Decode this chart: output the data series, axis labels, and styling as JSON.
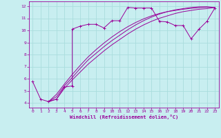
{
  "xlabel": "Windchill (Refroidissement éolien,°C)",
  "bg_color": "#c8eef0",
  "line_color": "#990099",
  "grid_color": "#aadddd",
  "xlim": [
    -0.5,
    23.5
  ],
  "ylim": [
    3.6,
    12.4
  ],
  "xticks": [
    0,
    1,
    2,
    3,
    4,
    5,
    6,
    7,
    8,
    9,
    10,
    11,
    12,
    13,
    14,
    15,
    16,
    17,
    18,
    19,
    20,
    21,
    22,
    23
  ],
  "yticks": [
    4,
    5,
    6,
    7,
    8,
    9,
    10,
    11,
    12
  ],
  "line1_x": [
    0,
    1,
    2,
    3,
    4,
    5,
    5,
    6,
    7,
    8,
    9,
    10,
    11,
    12,
    13,
    14,
    15,
    16,
    17,
    18,
    19,
    20,
    21,
    22,
    23
  ],
  "line1_y": [
    5.75,
    4.3,
    4.1,
    4.3,
    5.3,
    5.4,
    10.1,
    10.35,
    10.5,
    10.5,
    10.2,
    10.8,
    10.8,
    11.9,
    11.85,
    11.85,
    11.85,
    10.75,
    10.7,
    10.4,
    10.4,
    9.3,
    10.1,
    10.75,
    11.85
  ],
  "line2_x": [
    2,
    3,
    4,
    5,
    6,
    7,
    8,
    9,
    10,
    11,
    12,
    13,
    14,
    15,
    16,
    17,
    18,
    19,
    20,
    21,
    22,
    23
  ],
  "line2_y": [
    4.1,
    4.3,
    5.2,
    5.9,
    6.55,
    7.2,
    7.75,
    8.3,
    8.8,
    9.25,
    9.7,
    10.1,
    10.45,
    10.75,
    11.0,
    11.2,
    11.4,
    11.55,
    11.65,
    11.75,
    11.8,
    11.9
  ],
  "line3_x": [
    2,
    3,
    4,
    5,
    6,
    7,
    8,
    9,
    10,
    11,
    12,
    13,
    14,
    15,
    16,
    17,
    18,
    19,
    20,
    21,
    22,
    23
  ],
  "line3_y": [
    4.1,
    4.5,
    5.4,
    6.1,
    6.85,
    7.55,
    8.1,
    8.65,
    9.15,
    9.6,
    10.05,
    10.45,
    10.8,
    11.1,
    11.35,
    11.55,
    11.7,
    11.8,
    11.9,
    11.95,
    11.95,
    11.9
  ],
  "line4_x": [
    2,
    3,
    4,
    5,
    6,
    7,
    8,
    9,
    10,
    11,
    12,
    13,
    14,
    15,
    16,
    17,
    18,
    19,
    20,
    21,
    22,
    23
  ],
  "line4_y": [
    4.1,
    4.7,
    5.55,
    6.35,
    7.1,
    7.8,
    8.4,
    8.95,
    9.45,
    9.9,
    10.3,
    10.65,
    10.95,
    11.2,
    11.4,
    11.55,
    11.65,
    11.75,
    11.82,
    11.88,
    11.92,
    11.9
  ]
}
